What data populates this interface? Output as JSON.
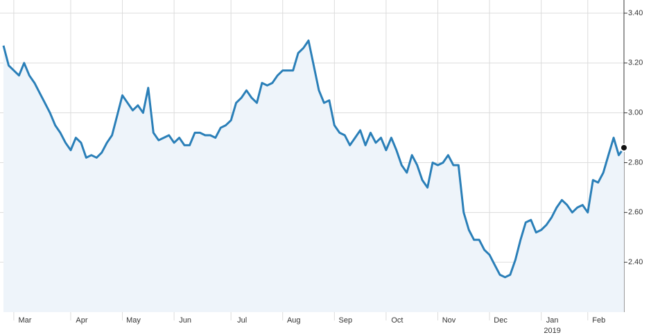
{
  "chart_data": {
    "type": "line",
    "categories": [
      null,
      null,
      "Mar",
      null,
      null,
      null,
      null,
      null,
      null,
      null,
      null,
      null,
      null,
      "Apr",
      null,
      null,
      null,
      null,
      null,
      null,
      null,
      null,
      null,
      "May",
      null,
      null,
      null,
      null,
      null,
      null,
      null,
      null,
      null,
      "Jun",
      null,
      null,
      null,
      null,
      null,
      null,
      null,
      null,
      null,
      null,
      "Jul",
      null,
      null,
      null,
      null,
      null,
      null,
      null,
      null,
      null,
      "Aug",
      null,
      null,
      null,
      null,
      null,
      null,
      null,
      null,
      null,
      "Sep",
      null,
      null,
      null,
      null,
      null,
      null,
      null,
      null,
      null,
      "Oct",
      null,
      null,
      null,
      null,
      null,
      null,
      null,
      null,
      null,
      "Nov",
      null,
      null,
      null,
      null,
      null,
      null,
      null,
      null,
      null,
      "Dec",
      null,
      null,
      null,
      null,
      null,
      null,
      null,
      null,
      null,
      "Jan",
      null,
      null,
      null,
      null,
      null,
      null,
      null,
      null,
      "Feb",
      null,
      null,
      null,
      null,
      null,
      null,
      null
    ],
    "year_label": "2019",
    "series": [
      {
        "color": "#2a7fb8",
        "fill": "#eef4fa",
        "values": [
          3.27,
          3.19,
          3.17,
          3.15,
          3.2,
          3.15,
          3.12,
          3.08,
          3.04,
          3.0,
          2.95,
          2.92,
          2.88,
          2.85,
          2.9,
          2.88,
          2.82,
          2.83,
          2.82,
          2.84,
          2.88,
          2.91,
          2.99,
          3.07,
          3.04,
          3.01,
          3.03,
          3.0,
          3.1,
          2.92,
          2.89,
          2.9,
          2.91,
          2.88,
          2.9,
          2.87,
          2.87,
          2.92,
          2.92,
          2.91,
          2.91,
          2.9,
          2.94,
          2.95,
          2.97,
          3.04,
          3.06,
          3.09,
          3.06,
          3.04,
          3.12,
          3.11,
          3.12,
          3.15,
          3.17,
          3.17,
          3.17,
          3.24,
          3.26,
          3.29,
          3.19,
          3.09,
          3.04,
          3.05,
          2.95,
          2.92,
          2.91,
          2.87,
          2.9,
          2.93,
          2.87,
          2.92,
          2.88,
          2.9,
          2.85,
          2.9,
          2.85,
          2.79,
          2.76,
          2.83,
          2.79,
          2.73,
          2.7,
          2.8,
          2.79,
          2.8,
          2.83,
          2.79,
          2.79,
          2.6,
          2.53,
          2.49,
          2.49,
          2.45,
          2.43,
          2.39,
          2.35,
          2.34,
          2.35,
          2.41,
          2.49,
          2.56,
          2.57,
          2.52,
          2.53,
          2.55,
          2.58,
          2.62,
          2.65,
          2.63,
          2.6,
          2.62,
          2.63,
          2.6,
          2.73,
          2.72,
          2.76,
          2.83,
          2.9,
          2.83,
          2.86
        ]
      }
    ],
    "ylim": [
      2.2,
      3.4
    ],
    "yticks": [
      {
        "value": 2.4,
        "label": "2.40"
      },
      {
        "value": 2.6,
        "label": "2.60"
      },
      {
        "value": 2.8,
        "label": "2.80"
      },
      {
        "value": 3.0,
        "label": "3.00"
      },
      {
        "value": 3.2,
        "label": "3.20"
      },
      {
        "value": 3.4,
        "label": "3.40"
      }
    ],
    "y_axis_side": "right",
    "grid": true
  }
}
